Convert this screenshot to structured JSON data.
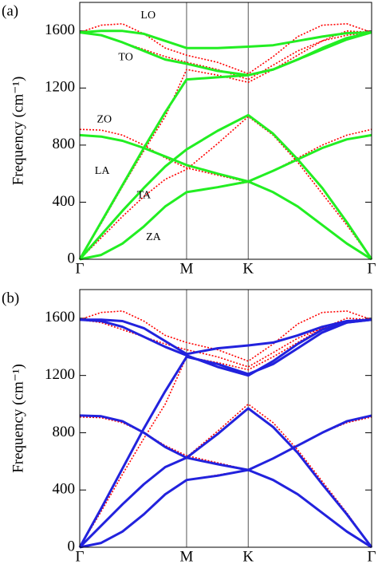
{
  "chart_data": [
    {
      "type": "line",
      "panel_label": "(a)",
      "ylabel": "Frequency (cm⁻¹)",
      "xlim": [
        0,
        2.732
      ],
      "xticks": [
        {
          "value": 0,
          "label": "Γ"
        },
        {
          "value": 1,
          "label": "M"
        },
        {
          "value": 1.577,
          "label": "K"
        },
        {
          "value": 2.732,
          "label": "Γ"
        }
      ],
      "ylim": [
        0,
        1800
      ],
      "yticks": [
        0,
        400,
        800,
        1200,
        1600
      ],
      "x": [
        0,
        0.2,
        0.4,
        0.6,
        0.8,
        1.0,
        1.29,
        1.577,
        1.81,
        2.04,
        2.27,
        2.5,
        2.732
      ],
      "series": [
        {
          "color": "#ff0000",
          "style": "dotted",
          "values": [
            0,
            30,
            110,
            230,
            370,
            470,
            505,
            540,
            470,
            370,
            240,
            110,
            0
          ]
        },
        {
          "color": "#ff0000",
          "style": "dotted",
          "values": [
            0,
            150,
            300,
            440,
            560,
            630,
            810,
            1000,
            870,
            680,
            460,
            240,
            0
          ]
        },
        {
          "color": "#ff0000",
          "style": "dotted",
          "values": [
            910,
            905,
            870,
            800,
            710,
            640,
            590,
            540,
            620,
            710,
            800,
            870,
            910
          ]
        },
        {
          "color": "#ff0000",
          "style": "dotted",
          "values": [
            0,
            250,
            510,
            760,
            1000,
            1330,
            1290,
            1240,
            1330,
            1430,
            1530,
            1600,
            1590
          ]
        },
        {
          "color": "#ff0000",
          "style": "dotted",
          "values": [
            1590,
            1570,
            1520,
            1470,
            1420,
            1380,
            1330,
            1260,
            1360,
            1460,
            1530,
            1570,
            1590
          ]
        },
        {
          "color": "#ff0000",
          "style": "dotted",
          "values": [
            1590,
            1640,
            1650,
            1580,
            1480,
            1430,
            1380,
            1300,
            1420,
            1560,
            1640,
            1650,
            1590
          ]
        },
        {
          "color": "#22ee22",
          "style": "solid",
          "values": [
            0,
            30,
            110,
            230,
            370,
            470,
            505,
            545,
            470,
            370,
            240,
            110,
            0
          ]
        },
        {
          "color": "#22ee22",
          "style": "solid",
          "values": [
            0,
            170,
            340,
            500,
            650,
            770,
            900,
            1010,
            880,
            700,
            500,
            260,
            0
          ]
        },
        {
          "color": "#22ee22",
          "style": "solid",
          "values": [
            870,
            860,
            830,
            780,
            720,
            660,
            600,
            545,
            620,
            700,
            780,
            840,
            870
          ]
        },
        {
          "color": "#22ee22",
          "style": "solid",
          "values": [
            0,
            260,
            520,
            780,
            1030,
            1260,
            1275,
            1290,
            1330,
            1400,
            1480,
            1550,
            1590
          ]
        },
        {
          "color": "#22ee22",
          "style": "solid",
          "values": [
            1590,
            1570,
            1520,
            1460,
            1400,
            1370,
            1320,
            1290,
            1330,
            1400,
            1470,
            1540,
            1590
          ]
        },
        {
          "color": "#22ee22",
          "style": "solid",
          "values": [
            1590,
            1600,
            1600,
            1580,
            1530,
            1480,
            1480,
            1490,
            1500,
            1530,
            1560,
            1585,
            1590
          ]
        }
      ],
      "annotations": [
        {
          "text": "LO",
          "x": 0.64,
          "y": 1705
        },
        {
          "text": "TO",
          "x": 0.43,
          "y": 1414
        },
        {
          "text": "ZO",
          "x": 0.23,
          "y": 978
        },
        {
          "text": "LA",
          "x": 0.21,
          "y": 615
        },
        {
          "text": "TA",
          "x": 0.6,
          "y": 447
        },
        {
          "text": "ZA",
          "x": 0.69,
          "y": 151
        }
      ]
    },
    {
      "type": "line",
      "panel_label": "(b)",
      "ylabel": "Frequency (cm⁻¹)",
      "xlim": [
        0,
        2.732
      ],
      "xticks": [
        {
          "value": 0,
          "label": "Γ"
        },
        {
          "value": 1,
          "label": "M"
        },
        {
          "value": 1.577,
          "label": "K"
        },
        {
          "value": 2.732,
          "label": "Γ"
        }
      ],
      "ylim": [
        0,
        1800
      ],
      "yticks": [
        0,
        400,
        800,
        1200,
        1600
      ],
      "x": [
        0,
        0.2,
        0.4,
        0.6,
        0.8,
        1.0,
        1.29,
        1.577,
        1.81,
        2.04,
        2.27,
        2.5,
        2.732
      ],
      "series": [
        {
          "color": "#ff0000",
          "style": "dotted",
          "values": [
            0,
            30,
            110,
            230,
            370,
            470,
            505,
            540,
            470,
            370,
            240,
            110,
            0
          ]
        },
        {
          "color": "#ff0000",
          "style": "dotted",
          "values": [
            0,
            150,
            300,
            440,
            560,
            630,
            810,
            1000,
            870,
            680,
            460,
            240,
            0
          ]
        },
        {
          "color": "#ff0000",
          "style": "dotted",
          "values": [
            910,
            905,
            870,
            800,
            710,
            640,
            590,
            540,
            620,
            710,
            800,
            870,
            910
          ]
        },
        {
          "color": "#ff0000",
          "style": "dotted",
          "values": [
            0,
            250,
            510,
            760,
            1000,
            1330,
            1290,
            1240,
            1330,
            1430,
            1530,
            1600,
            1590
          ]
        },
        {
          "color": "#ff0000",
          "style": "dotted",
          "values": [
            1590,
            1570,
            1520,
            1470,
            1420,
            1380,
            1330,
            1260,
            1360,
            1460,
            1530,
            1570,
            1590
          ]
        },
        {
          "color": "#ff0000",
          "style": "dotted",
          "values": [
            1590,
            1640,
            1650,
            1580,
            1480,
            1430,
            1380,
            1300,
            1420,
            1560,
            1640,
            1650,
            1590
          ]
        },
        {
          "color": "#2222dd",
          "style": "solid",
          "values": [
            0,
            30,
            110,
            230,
            370,
            470,
            500,
            540,
            470,
            370,
            240,
            110,
            0
          ]
        },
        {
          "color": "#2222dd",
          "style": "solid",
          "values": [
            0,
            150,
            300,
            440,
            560,
            625,
            790,
            970,
            840,
            660,
            440,
            230,
            0
          ]
        },
        {
          "color": "#2222dd",
          "style": "solid",
          "values": [
            920,
            915,
            880,
            800,
            700,
            625,
            580,
            540,
            620,
            710,
            800,
            880,
            920
          ]
        },
        {
          "color": "#2222dd",
          "style": "solid",
          "values": [
            0,
            270,
            550,
            830,
            1090,
            1330,
            1280,
            1210,
            1280,
            1390,
            1500,
            1570,
            1590
          ]
        },
        {
          "color": "#2222dd",
          "style": "solid",
          "values": [
            1590,
            1580,
            1540,
            1470,
            1400,
            1340,
            1260,
            1200,
            1300,
            1420,
            1520,
            1570,
            1590
          ]
        },
        {
          "color": "#2222dd",
          "style": "solid",
          "values": [
            1590,
            1590,
            1580,
            1530,
            1440,
            1350,
            1390,
            1410,
            1430,
            1480,
            1540,
            1580,
            1590
          ]
        }
      ]
    }
  ]
}
